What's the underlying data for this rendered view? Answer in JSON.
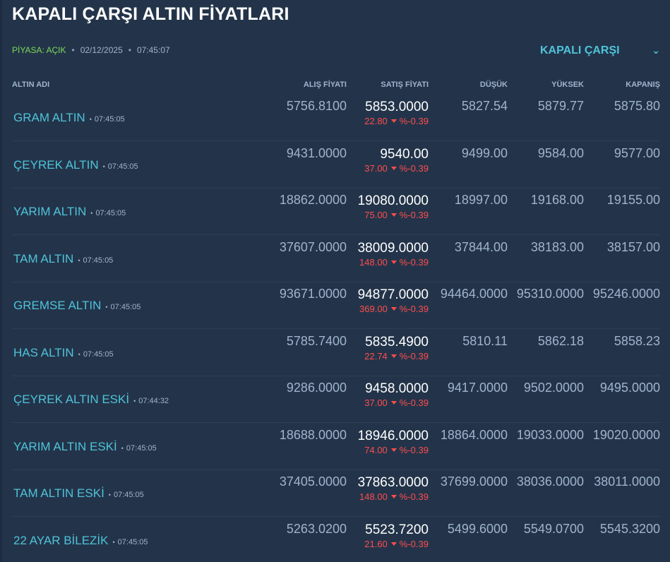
{
  "title": "KAPALI ÇARŞI ALTIN FİYATLARI",
  "meta": {
    "status": "PİYASA: AÇIK",
    "date": "02/12/2025",
    "time": "07:45:07"
  },
  "market_select": {
    "value": "KAPALI ÇARŞI",
    "icon": "chevron-down-icon"
  },
  "headers": {
    "name": "ALTIN ADI",
    "buy": "ALIŞ FİYATI",
    "sell": "SATIŞ FİYATI",
    "low": "DÜŞÜK",
    "high": "YÜKSEK",
    "close": "KAPANIŞ"
  },
  "colors": {
    "accent": "#4fc3d9",
    "down": "#ff4d4d",
    "open": "#7ed957",
    "background": "#23344a"
  },
  "rows": [
    {
      "name": "GRAM ALTIN",
      "time": "07:45:05",
      "buy": "5756.8100",
      "sell": "5853.0000",
      "change": "22.80",
      "pct": "%-0.39",
      "low": "5827.54",
      "high": "5879.77",
      "close": "5875.80"
    },
    {
      "name": "ÇEYREK ALTIN",
      "time": "07:45:05",
      "buy": "9431.0000",
      "sell": "9540.00",
      "change": "37.00",
      "pct": "%-0.39",
      "low": "9499.00",
      "high": "9584.00",
      "close": "9577.00"
    },
    {
      "name": "YARIM ALTIN",
      "time": "07:45:05",
      "buy": "18862.0000",
      "sell": "19080.0000",
      "change": "75.00",
      "pct": "%-0.39",
      "low": "18997.00",
      "high": "19168.00",
      "close": "19155.00"
    },
    {
      "name": "TAM ALTIN",
      "time": "07:45:05",
      "buy": "37607.0000",
      "sell": "38009.0000",
      "change": "148.00",
      "pct": "%-0.39",
      "low": "37844.00",
      "high": "38183.00",
      "close": "38157.00"
    },
    {
      "name": "GREMSE ALTIN",
      "time": "07:45:05",
      "buy": "93671.0000",
      "sell": "94877.0000",
      "change": "369.00",
      "pct": "%-0.39",
      "low": "94464.0000",
      "high": "95310.0000",
      "close": "95246.0000"
    },
    {
      "name": "HAS ALTIN",
      "time": "07:45:05",
      "buy": "5785.7400",
      "sell": "5835.4900",
      "change": "22.74",
      "pct": "%-0.39",
      "low": "5810.11",
      "high": "5862.18",
      "close": "5858.23"
    },
    {
      "name": "ÇEYREK ALTIN ESKİ",
      "time": "07:44:32",
      "buy": "9286.0000",
      "sell": "9458.0000",
      "change": "37.00",
      "pct": "%-0.39",
      "low": "9417.0000",
      "high": "9502.0000",
      "close": "9495.0000"
    },
    {
      "name": "YARIM ALTIN ESKİ",
      "time": "07:45:05",
      "buy": "18688.0000",
      "sell": "18946.0000",
      "change": "74.00",
      "pct": "%-0.39",
      "low": "18864.0000",
      "high": "19033.0000",
      "close": "19020.0000"
    },
    {
      "name": "TAM ALTIN ESKİ",
      "time": "07:45:05",
      "buy": "37405.0000",
      "sell": "37863.0000",
      "change": "148.00",
      "pct": "%-0.39",
      "low": "37699.0000",
      "high": "38036.0000",
      "close": "38011.0000"
    },
    {
      "name": "22 AYAR BİLEZİK",
      "time": "07:45:05",
      "buy": "5263.0200",
      "sell": "5523.7200",
      "change": "21.60",
      "pct": "%-0.39",
      "low": "5499.6000",
      "high": "5549.0700",
      "close": "5545.3200"
    }
  ]
}
